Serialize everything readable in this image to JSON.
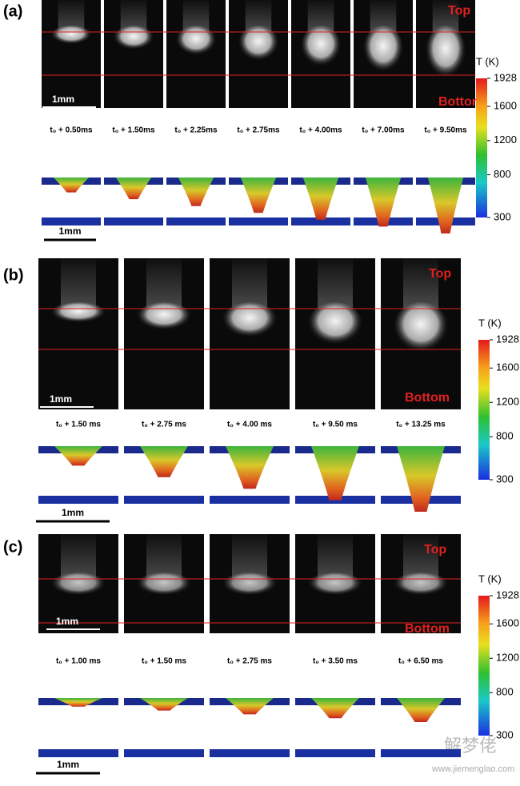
{
  "panels": [
    {
      "label": "(a)",
      "top": "Top",
      "bottom": "Bottom",
      "image_scale": "1mm",
      "sim_scale": "1mm",
      "times": [
        "t₀ + 0.50ms",
        "t₀ + 1.50ms",
        "t₀ + 2.25ms",
        "t₀ + 2.75ms",
        "t₀ + 4.00ms",
        "t₀ + 7.00ms",
        "t₀ + 9.50ms"
      ]
    },
    {
      "label": "(b)",
      "top": "Top",
      "bottom": "Bottom",
      "image_scale": "1mm",
      "sim_scale": "1mm",
      "times": [
        "t₀ + 1.50  ms",
        "t₀ + 2.75  ms",
        "t₀ + 4.00  ms",
        "t₀ + 9.50  ms",
        "t₀ + 13.25  ms"
      ]
    },
    {
      "label": "(c)",
      "top": "Top",
      "bottom": "Bottom",
      "image_scale": "1mm",
      "sim_scale": "1mm",
      "times": [
        "t₀ + 1.00  ms",
        "t₀ + 1.50  ms",
        "t₀ + 2.75  ms",
        "t₀ + 3.50  ms",
        "t₀ + 6.50  ms"
      ]
    }
  ],
  "colorbar": {
    "title": "T (K)",
    "ticks": [
      1928,
      1600,
      1200,
      800,
      300
    ]
  },
  "watermark": {
    "site": "www.jiemenglao.com",
    "brand": "解梦佬"
  }
}
